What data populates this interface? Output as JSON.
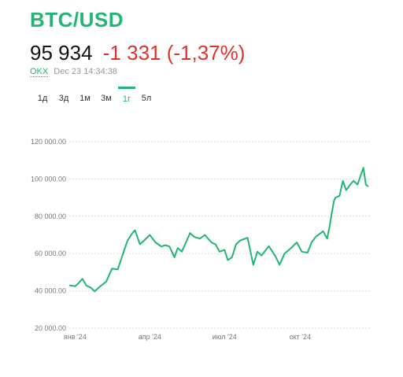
{
  "header": {
    "title": "BTC/USD",
    "price": "95 934",
    "change": "-1 331 (-1,37%)",
    "source": "OKX",
    "timestamp": "Dec 23 14:34:38"
  },
  "tabs": [
    {
      "label": "1д",
      "active": false
    },
    {
      "label": "3д",
      "active": false
    },
    {
      "label": "1м",
      "active": false
    },
    {
      "label": "3м",
      "active": false
    },
    {
      "label": "1г",
      "active": true
    },
    {
      "label": "5л",
      "active": false
    }
  ],
  "colors": {
    "accent": "#22b573",
    "negative": "#e0312c",
    "line": "#22b573",
    "grid": "#dddddd"
  },
  "chart_data": {
    "type": "line",
    "ylim": [
      20000,
      120000
    ],
    "yticks": [
      20000,
      40000,
      60000,
      80000,
      100000,
      120000
    ],
    "ytick_labels": [
      "20 000.00",
      "40 000.00",
      "60 000.00",
      "80 000.00",
      "100 000.00",
      "120 000.00"
    ],
    "xticks": [
      "2024-01-01",
      "2024-04-01",
      "2024-07-01",
      "2024-10-01"
    ],
    "xtick_labels": [
      "янв '24",
      "апр '24",
      "июл '24",
      "окт '24"
    ],
    "grid": "horizontal",
    "series": [
      {
        "x": [
          "2023-12-25",
          "2024-01-01",
          "2024-01-05",
          "2024-01-10",
          "2024-01-15",
          "2024-01-20",
          "2024-01-25",
          "2024-02-01",
          "2024-02-08",
          "2024-02-15",
          "2024-02-22",
          "2024-03-01",
          "2024-03-05",
          "2024-03-10",
          "2024-03-14",
          "2024-03-20",
          "2024-03-25",
          "2024-04-01",
          "2024-04-08",
          "2024-04-15",
          "2024-04-20",
          "2024-04-25",
          "2024-05-01",
          "2024-05-05",
          "2024-05-10",
          "2024-05-15",
          "2024-05-20",
          "2024-05-25",
          "2024-06-01",
          "2024-06-07",
          "2024-06-15",
          "2024-06-20",
          "2024-06-25",
          "2024-07-01",
          "2024-07-05",
          "2024-07-10",
          "2024-07-15",
          "2024-07-20",
          "2024-07-29",
          "2024-08-05",
          "2024-08-10",
          "2024-08-15",
          "2024-08-24",
          "2024-09-01",
          "2024-09-06",
          "2024-09-12",
          "2024-09-20",
          "2024-09-27",
          "2024-10-03",
          "2024-10-10",
          "2024-10-15",
          "2024-10-20",
          "2024-10-29",
          "2024-11-03",
          "2024-11-06",
          "2024-11-11",
          "2024-11-13",
          "2024-11-18",
          "2024-11-22",
          "2024-11-26",
          "2024-12-01",
          "2024-12-05",
          "2024-12-10",
          "2024-12-13",
          "2024-12-17",
          "2024-12-20",
          "2024-12-23"
        ],
        "values": [
          43000,
          42500,
          44000,
          46500,
          42800,
          41800,
          39800,
          42600,
          45000,
          52000,
          51500,
          62000,
          67000,
          70500,
          72500,
          65000,
          67000,
          70000,
          66000,
          63800,
          64500,
          63800,
          58000,
          63000,
          61000,
          66000,
          71000,
          69000,
          68000,
          70000,
          66000,
          65000,
          61000,
          62000,
          56500,
          58000,
          65000,
          67000,
          68500,
          54000,
          61000,
          59000,
          64000,
          58500,
          54000,
          60000,
          63000,
          66000,
          61000,
          60500,
          66000,
          69000,
          72000,
          68000,
          75000,
          88000,
          90000,
          91000,
          99000,
          94000,
          97000,
          99000,
          97000,
          101000,
          106000,
          97000,
          95934
        ]
      }
    ]
  }
}
